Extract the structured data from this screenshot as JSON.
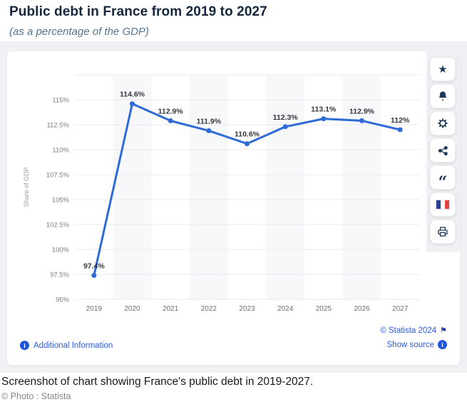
{
  "page": {
    "title": "Public debt in France from 2019 to 2027",
    "subtitle": "(as a percentage of the GDP)",
    "caption": "Screenshot of chart showing France's public debt in 2019-2027.",
    "photo_credit": "© Photo : Statista"
  },
  "chart_card": {
    "footer": {
      "additional_info": "Additional Information",
      "copyright": "© Statista 2024",
      "show_source": "Show source"
    },
    "toolbar_icons": [
      "star-icon",
      "bell-icon",
      "gear-icon",
      "share-icon",
      "quote-icon",
      "french-flag-icon",
      "printer-icon"
    ]
  },
  "chart_data": {
    "type": "line",
    "title": "Public debt in France from 2019 to 2027",
    "subtitle": "(as a percentage of the GDP)",
    "categories": [
      "2019",
      "2020",
      "2021",
      "2022",
      "2023",
      "2024",
      "2025",
      "2026",
      "2027"
    ],
    "values": [
      97.4,
      114.6,
      112.9,
      111.9,
      110.6,
      112.3,
      113.1,
      112.9,
      112
    ],
    "labels": [
      "97.4%",
      "114.6%",
      "112.9%",
      "111.9%",
      "110.6%",
      "112.3%",
      "113.1%",
      "112.9%",
      "112%"
    ],
    "xlabel": "",
    "ylabel": "Share of GDP",
    "ylim": [
      95,
      117.5
    ],
    "ytick_step": 2.5,
    "ytick_labels": [
      "95%",
      "97.5%",
      "100%",
      "102.5%",
      "105%",
      "107.5%",
      "110%",
      "112.5%",
      "115%"
    ],
    "grid": true,
    "legend": "none",
    "line_color": "#2e6bd6",
    "band_color": "#f7f8fa",
    "grid_color": "#e9eaed"
  },
  "colors": {
    "title_text": "#15263d",
    "subtitle_text": "#53748f",
    "link_blue": "#2b59e0",
    "icon_navy": "#1d3a5c",
    "page_band": "#eff1f4"
  }
}
